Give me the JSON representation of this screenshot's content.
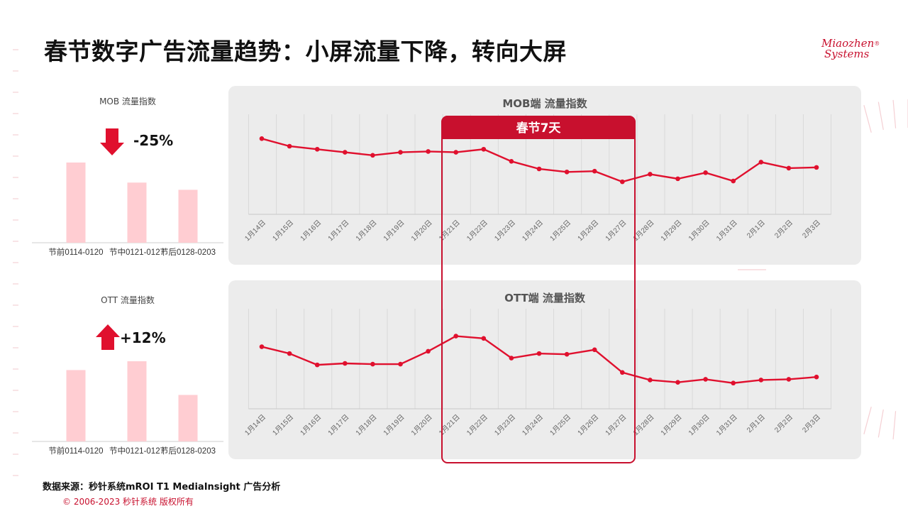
{
  "title": "春节数字广告流量趋势：小屏流量下降，转向大屏",
  "logo": {
    "line1": "Miaozhen",
    "line2": "Systems",
    "mark": "®"
  },
  "highlight": {
    "label": "春节7天",
    "start_index": 7,
    "end_index": 13
  },
  "colors": {
    "accent": "#c8102e",
    "line": "#e0102e",
    "bar": "#ffcdd2",
    "panel": "#ececec"
  },
  "mini_charts": {
    "mob": {
      "title": "MOB  流量指数",
      "change": "-25%",
      "direction": "down",
      "arrow_icon": "arrow-down-icon",
      "categories": [
        "节前0114-0120",
        "节中0121-0127",
        "节后0128-0203"
      ],
      "values": [
        100,
        75,
        66
      ]
    },
    "ott": {
      "title": "OTT  流量指数",
      "change": "+12%",
      "direction": "up",
      "arrow_icon": "arrow-up-icon",
      "categories": [
        "节前0114-0120",
        "节中0121-0127",
        "节后0128-0203"
      ],
      "values": [
        89,
        100,
        58
      ]
    }
  },
  "chart_data": [
    {
      "type": "line",
      "title": "MOB端  流量指数",
      "x": [
        "1月14日",
        "1月15日",
        "1月16日",
        "1月17日",
        "1月18日",
        "1月19日",
        "1月20日",
        "1月21日",
        "1月22日",
        "1月23日",
        "1月24日",
        "1月25日",
        "1月26日",
        "1月27日",
        "1月28日",
        "1月29日",
        "1月30日",
        "1月31日",
        "2月1日",
        "2月2日",
        "2月3日"
      ],
      "values": [
        100,
        90,
        86,
        82,
        78,
        82,
        83,
        82,
        86,
        70,
        60,
        56,
        57,
        43,
        53,
        47,
        55,
        44,
        69,
        61,
        62
      ],
      "ylim": [
        0,
        120
      ],
      "grid": "vertical"
    },
    {
      "type": "line",
      "title": "OTT端  流量指数",
      "x": [
        "1月14日",
        "1月15日",
        "1月16日",
        "1月17日",
        "1月18日",
        "1月19日",
        "1月20日",
        "1月21日",
        "1月22日",
        "1月23日",
        "1月24日",
        "1月25日",
        "1月26日",
        "1月27日",
        "1月28日",
        "1月29日",
        "1月30日",
        "1月31日",
        "2月1日",
        "2月2日",
        "2月3日"
      ],
      "values": [
        82,
        73,
        58,
        60,
        59,
        59,
        76,
        96,
        93,
        67,
        73,
        72,
        78,
        48,
        38,
        35,
        39,
        34,
        38,
        39,
        42
      ],
      "ylim": [
        0,
        120
      ],
      "grid": "vertical"
    }
  ],
  "source": "数据来源：秒针系统mROI T1 MediaInsight   广告分析",
  "copyright": "© 2006-2023 秒针系统 版权所有"
}
